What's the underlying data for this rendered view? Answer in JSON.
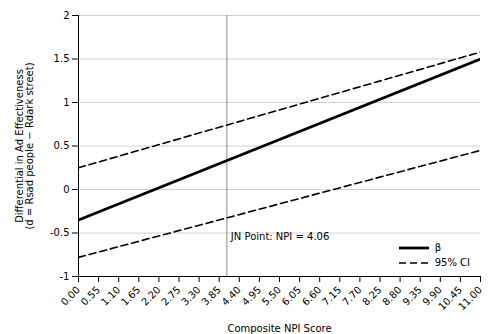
{
  "chart_data": {
    "type": "line",
    "xlabel": "Composite NPI Score",
    "ylabel": "Differential in Ad Effectiveness\n(d = Rsad people − Rdark street)",
    "x": [
      0.0,
      11.0
    ],
    "series": [
      {
        "name": "β",
        "color": "#000000",
        "line_style": "solid",
        "values": [
          -0.35,
          1.5
        ]
      },
      {
        "name": "95% CI",
        "color": "#000000",
        "line_style": "dashed",
        "values": [
          0.25,
          1.58
        ]
      },
      {
        "name": "95% CI",
        "color": "#000000",
        "line_style": "dashed",
        "values": [
          -0.78,
          0.45
        ]
      }
    ],
    "annotations": [
      {
        "text": "JN Point: NPI = 4.06",
        "x": 4.06
      }
    ],
    "xlim": [
      0.0,
      11.0
    ],
    "xticks": [
      {
        "value": 0.0,
        "label": "0.00"
      },
      {
        "value": 0.55,
        "label": "0.55"
      },
      {
        "value": 1.1,
        "label": "1.10"
      },
      {
        "value": 1.65,
        "label": "1.65"
      },
      {
        "value": 2.2,
        "label": "2.20"
      },
      {
        "value": 2.75,
        "label": "2.75"
      },
      {
        "value": 3.3,
        "label": "3.30"
      },
      {
        "value": 3.85,
        "label": "3.85"
      },
      {
        "value": 4.4,
        "label": "4.40"
      },
      {
        "value": 4.95,
        "label": "4.95"
      },
      {
        "value": 5.5,
        "label": "5.50"
      },
      {
        "value": 6.05,
        "label": "6.05"
      },
      {
        "value": 6.6,
        "label": "6.60"
      },
      {
        "value": 7.15,
        "label": "7.15"
      },
      {
        "value": 7.7,
        "label": "7.70"
      },
      {
        "value": 8.25,
        "label": "8.25"
      },
      {
        "value": 8.8,
        "label": "8.80"
      },
      {
        "value": 9.35,
        "label": "9.35"
      },
      {
        "value": 9.9,
        "label": "9.90"
      },
      {
        "value": 10.45,
        "label": "10.45"
      },
      {
        "value": 11.0,
        "label": "11.00"
      }
    ],
    "ylim": [
      -1,
      2
    ],
    "yticks": [
      -1,
      -0.5,
      0,
      0.5,
      1,
      1.5,
      2
    ],
    "grid": "y",
    "legend": "lower right"
  }
}
